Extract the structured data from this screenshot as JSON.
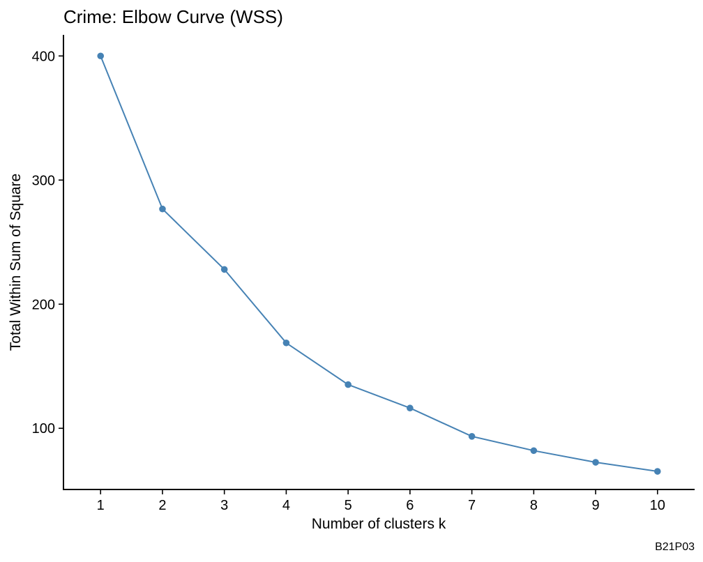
{
  "chart_data": {
    "type": "line",
    "title": "Crime: Elbow Curve (WSS)",
    "xlabel": "Number of clusters k",
    "ylabel": "Total Within Sum of Square",
    "caption": "B21P03",
    "x": [
      1,
      2,
      3,
      4,
      5,
      6,
      7,
      8,
      9,
      10
    ],
    "x_tick_labels": [
      "1",
      "2",
      "3",
      "4",
      "5",
      "6",
      "7",
      "8",
      "9",
      "10"
    ],
    "y_ticks": [
      100,
      200,
      300,
      400
    ],
    "y_tick_labels": [
      "100",
      "200",
      "300",
      "400"
    ],
    "xlim": [
      0.4,
      10.6
    ],
    "ylim": [
      50.7,
      417
    ],
    "grid": false,
    "legend": "none",
    "series": [
      {
        "values": [
          400.0,
          276.7,
          228.0,
          168.8,
          135.2,
          116.3,
          93.5,
          82.0,
          72.6,
          65.3
        ],
        "color": "#4682B4"
      }
    ]
  }
}
